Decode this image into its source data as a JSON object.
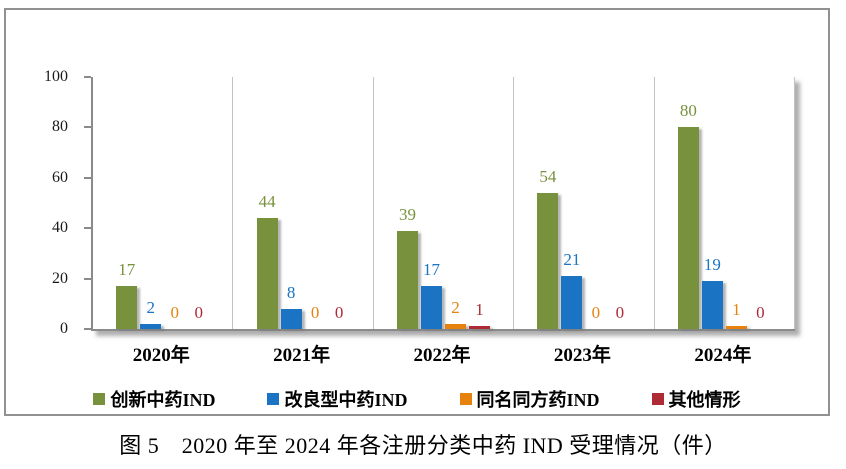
{
  "figure": {
    "caption": "图 5　2020 年至 2024 年各注册分类中药 IND 受理情况（件）"
  },
  "chart_data": {
    "type": "bar",
    "title": "图 5　2020 年至 2024 年各注册分类中药 IND 受理情况（件）",
    "categories": [
      "2020年",
      "2021年",
      "2022年",
      "2023年",
      "2024年"
    ],
    "series": [
      {
        "name": "创新中药IND",
        "color": "#78913D",
        "values": [
          17,
          44,
          39,
          54,
          80
        ]
      },
      {
        "name": "改良型中药IND",
        "color": "#1B73C4",
        "values": [
          2,
          8,
          17,
          21,
          19
        ]
      },
      {
        "name": "同名同方药IND",
        "color": "#E6820E",
        "values": [
          0,
          0,
          2,
          0,
          1
        ]
      },
      {
        "name": "其他情形",
        "color": "#AC2B35",
        "values": [
          0,
          0,
          1,
          0,
          0
        ]
      }
    ],
    "ylim": [
      0,
      100
    ],
    "yticks": [
      0,
      20,
      40,
      60,
      80,
      100
    ],
    "xlabel": "",
    "ylabel": "",
    "legend_position": "bottom",
    "grid": "vertical category dividers, no horizontal gridlines",
    "data_labels": true,
    "axis_color": "#8A8A8A",
    "border_color": "#919191"
  }
}
